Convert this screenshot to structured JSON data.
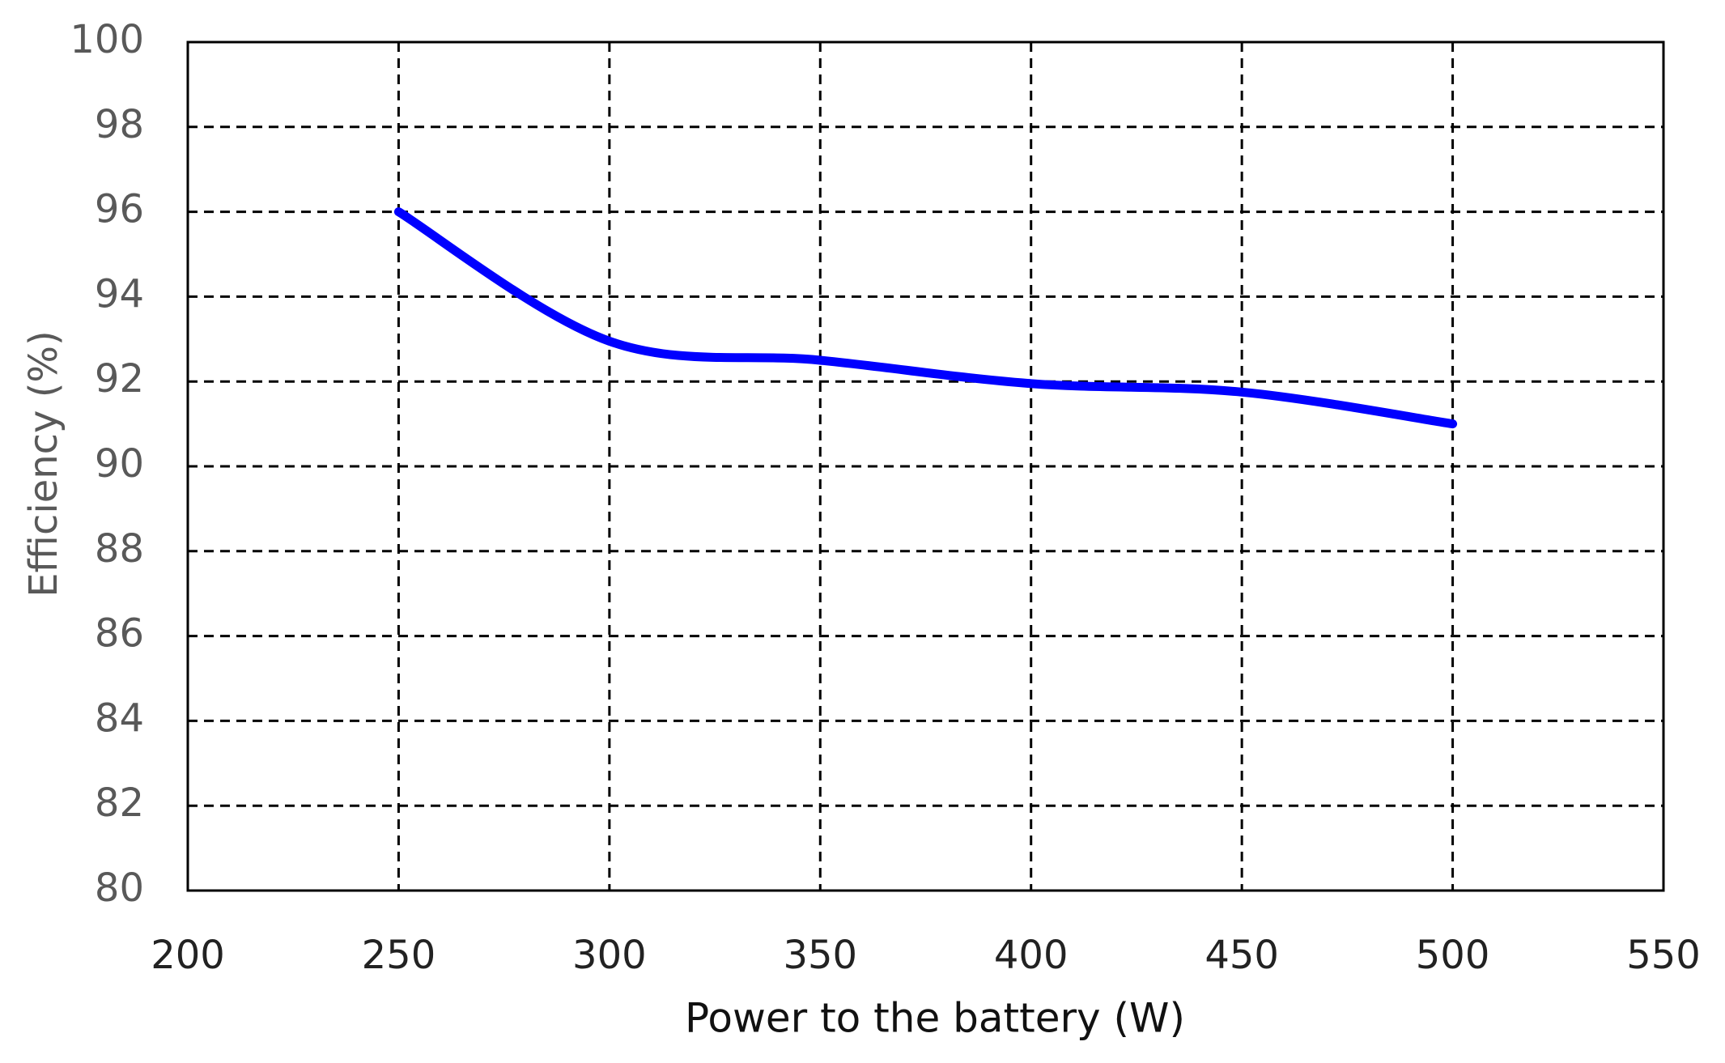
{
  "chart_data": {
    "type": "line",
    "x_label": "Power to the battery (W)",
    "y_label": "Efficiency (%)",
    "x": [
      250,
      300,
      350,
      400,
      450,
      500
    ],
    "series": [
      {
        "name": "Efficiency",
        "color": "#0000ff",
        "values": [
          96,
          92.95,
          92.5,
          91.95,
          91.75,
          91
        ]
      }
    ],
    "xlim": [
      200,
      550
    ],
    "xticks": [
      200,
      250,
      300,
      350,
      400,
      450,
      500,
      550
    ],
    "ylim": [
      80,
      100
    ],
    "yticks": [
      80,
      82,
      84,
      86,
      88,
      90,
      92,
      94,
      96,
      98,
      100
    ],
    "grid": true
  }
}
